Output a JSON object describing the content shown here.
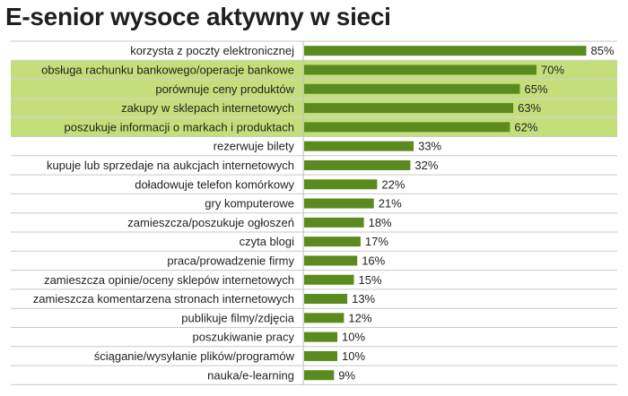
{
  "chart_data": {
    "type": "bar",
    "orientation": "horizontal",
    "title": "E-senior wysoce aktywny w sieci",
    "categories": [
      "korzysta z poczty elektronicznej",
      "obsługa rachunku bankowego/operacje bankowe",
      "porównuje ceny produktów",
      "zakupy w sklepach internetowych",
      "poszukuje informacji o markach i produktach",
      "rezerwuje bilety",
      "kupuje lub sprzedaje na aukcjach internetowych",
      "doładowuje telefon komórkowy",
      "gry komputerowe",
      "zamieszcza/poszukuje ogłoszeń",
      "czyta blogi",
      "praca/prowadzenie firmy",
      "zamieszcza opinie/oceny sklepów internetowych",
      "zamieszcza komentarzena stronach internetowych",
      "publikuje filmy/zdjęcia",
      "poszukiwanie pracy",
      "ściąganie/wysyłanie plików/programów",
      "nauka/e-learning"
    ],
    "values": [
      85,
      70,
      65,
      63,
      62,
      33,
      32,
      22,
      21,
      18,
      17,
      16,
      15,
      13,
      12,
      10,
      10,
      9
    ],
    "value_labels": [
      "85%",
      "70%",
      "65%",
      "63%",
      "62%",
      "33%",
      "32%",
      "22%",
      "21%",
      "18%",
      "17%",
      "16%",
      "15%",
      "13%",
      "12%",
      "10%",
      "10%",
      "9%"
    ],
    "highlighted_rows": [
      1,
      2,
      3,
      4
    ],
    "xlim": [
      0,
      100
    ],
    "grid": false,
    "legend": "none",
    "colors": {
      "bar": "#5b8a1e",
      "highlight_background": "#c4df7a",
      "row_separator": "#c9c9c9",
      "axis": "#bdbdbd"
    }
  }
}
